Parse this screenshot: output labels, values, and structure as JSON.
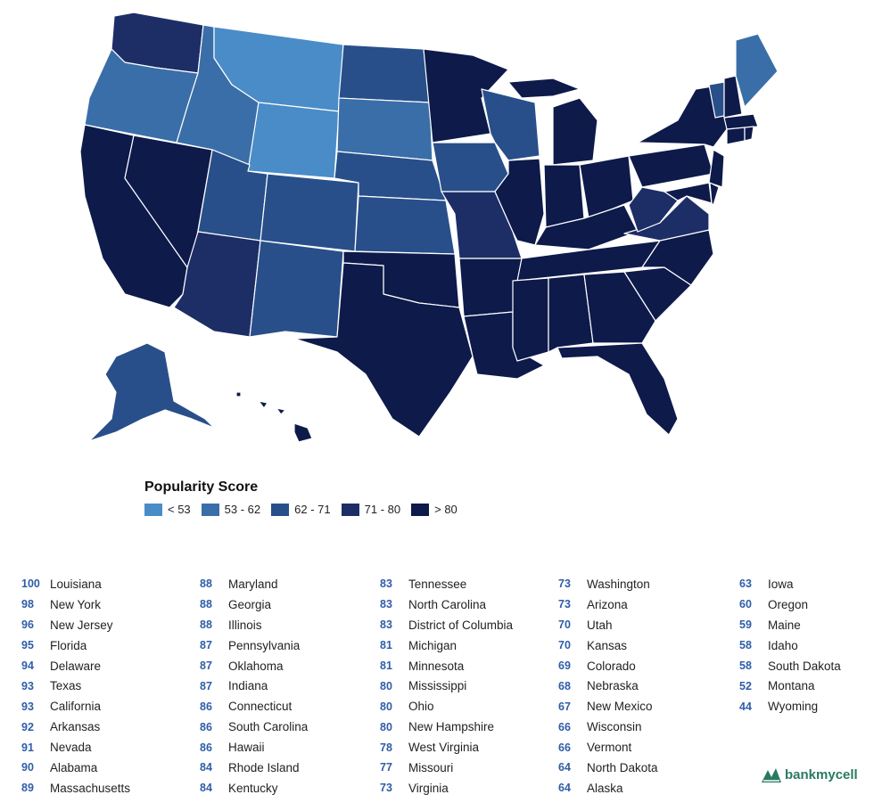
{
  "colors": {
    "lt53": "#4a8cc7",
    "c53_62": "#3a6ea8",
    "c62_71": "#284f8a",
    "c71_80": "#1d2e66",
    "gt80": "#0d1a4a",
    "score_text": "#2f5da8",
    "brand": "#2a7a63"
  },
  "legend": {
    "title": "Popularity Score",
    "items": [
      {
        "label": "< 53",
        "color": "#4a8cc7"
      },
      {
        "label": "53 - 62",
        "color": "#3a6ea8"
      },
      {
        "label": "62 - 71",
        "color": "#284f8a"
      },
      {
        "label": "71 - 80",
        "color": "#1d2e66"
      },
      {
        "label": "> 80",
        "color": "#0d1a4a"
      }
    ]
  },
  "rankings": {
    "col1": [
      {
        "score": "100",
        "state": "Louisiana"
      },
      {
        "score": "98",
        "state": "New York"
      },
      {
        "score": "96",
        "state": "New Jersey"
      },
      {
        "score": "95",
        "state": "Florida"
      },
      {
        "score": "94",
        "state": "Delaware"
      },
      {
        "score": "93",
        "state": "Texas"
      },
      {
        "score": "93",
        "state": "California"
      },
      {
        "score": "92",
        "state": "Arkansas"
      },
      {
        "score": "91",
        "state": "Nevada"
      },
      {
        "score": "90",
        "state": "Alabama"
      },
      {
        "score": "89",
        "state": "Massachusetts"
      }
    ],
    "col2": [
      {
        "score": "88",
        "state": "Maryland"
      },
      {
        "score": "88",
        "state": "Georgia"
      },
      {
        "score": "88",
        "state": "Illinois"
      },
      {
        "score": "87",
        "state": "Pennsylvania"
      },
      {
        "score": "87",
        "state": "Oklahoma"
      },
      {
        "score": "87",
        "state": "Indiana"
      },
      {
        "score": "86",
        "state": "Connecticut"
      },
      {
        "score": "86",
        "state": "South Carolina"
      },
      {
        "score": "86",
        "state": "Hawaii"
      },
      {
        "score": "84",
        "state": "Rhode Island"
      },
      {
        "score": "84",
        "state": "Kentucky"
      }
    ],
    "col3": [
      {
        "score": "83",
        "state": "Tennessee"
      },
      {
        "score": "83",
        "state": "North Carolina"
      },
      {
        "score": "83",
        "state": "District of Columbia"
      },
      {
        "score": "81",
        "state": "Michigan"
      },
      {
        "score": "81",
        "state": "Minnesota"
      },
      {
        "score": "80",
        "state": "Mississippi"
      },
      {
        "score": "80",
        "state": "Ohio"
      },
      {
        "score": "80",
        "state": "New Hampshire"
      },
      {
        "score": "78",
        "state": "West Virginia"
      },
      {
        "score": "77",
        "state": "Missouri"
      },
      {
        "score": "73",
        "state": "Virginia"
      }
    ],
    "col4": [
      {
        "score": "73",
        "state": "Washington"
      },
      {
        "score": "73",
        "state": "Arizona"
      },
      {
        "score": "70",
        "state": "Utah"
      },
      {
        "score": "70",
        "state": "Kansas"
      },
      {
        "score": "69",
        "state": "Colorado"
      },
      {
        "score": "68",
        "state": "Nebraska"
      },
      {
        "score": "67",
        "state": "New Mexico"
      },
      {
        "score": "66",
        "state": "Wisconsin"
      },
      {
        "score": "66",
        "state": "Vermont"
      },
      {
        "score": "64",
        "state": "North Dakota"
      },
      {
        "score": "64",
        "state": "Alaska"
      }
    ],
    "col5": [
      {
        "score": "63",
        "state": "Iowa"
      },
      {
        "score": "60",
        "state": "Oregon"
      },
      {
        "score": "59",
        "state": "Maine"
      },
      {
        "score": "58",
        "state": "Idaho"
      },
      {
        "score": "58",
        "state": "South Dakota"
      },
      {
        "score": "52",
        "state": "Montana"
      },
      {
        "score": "44",
        "state": "Wyoming"
      }
    ]
  },
  "brand": {
    "name": "bankmycell",
    "icon": "bank-logo-icon"
  }
}
